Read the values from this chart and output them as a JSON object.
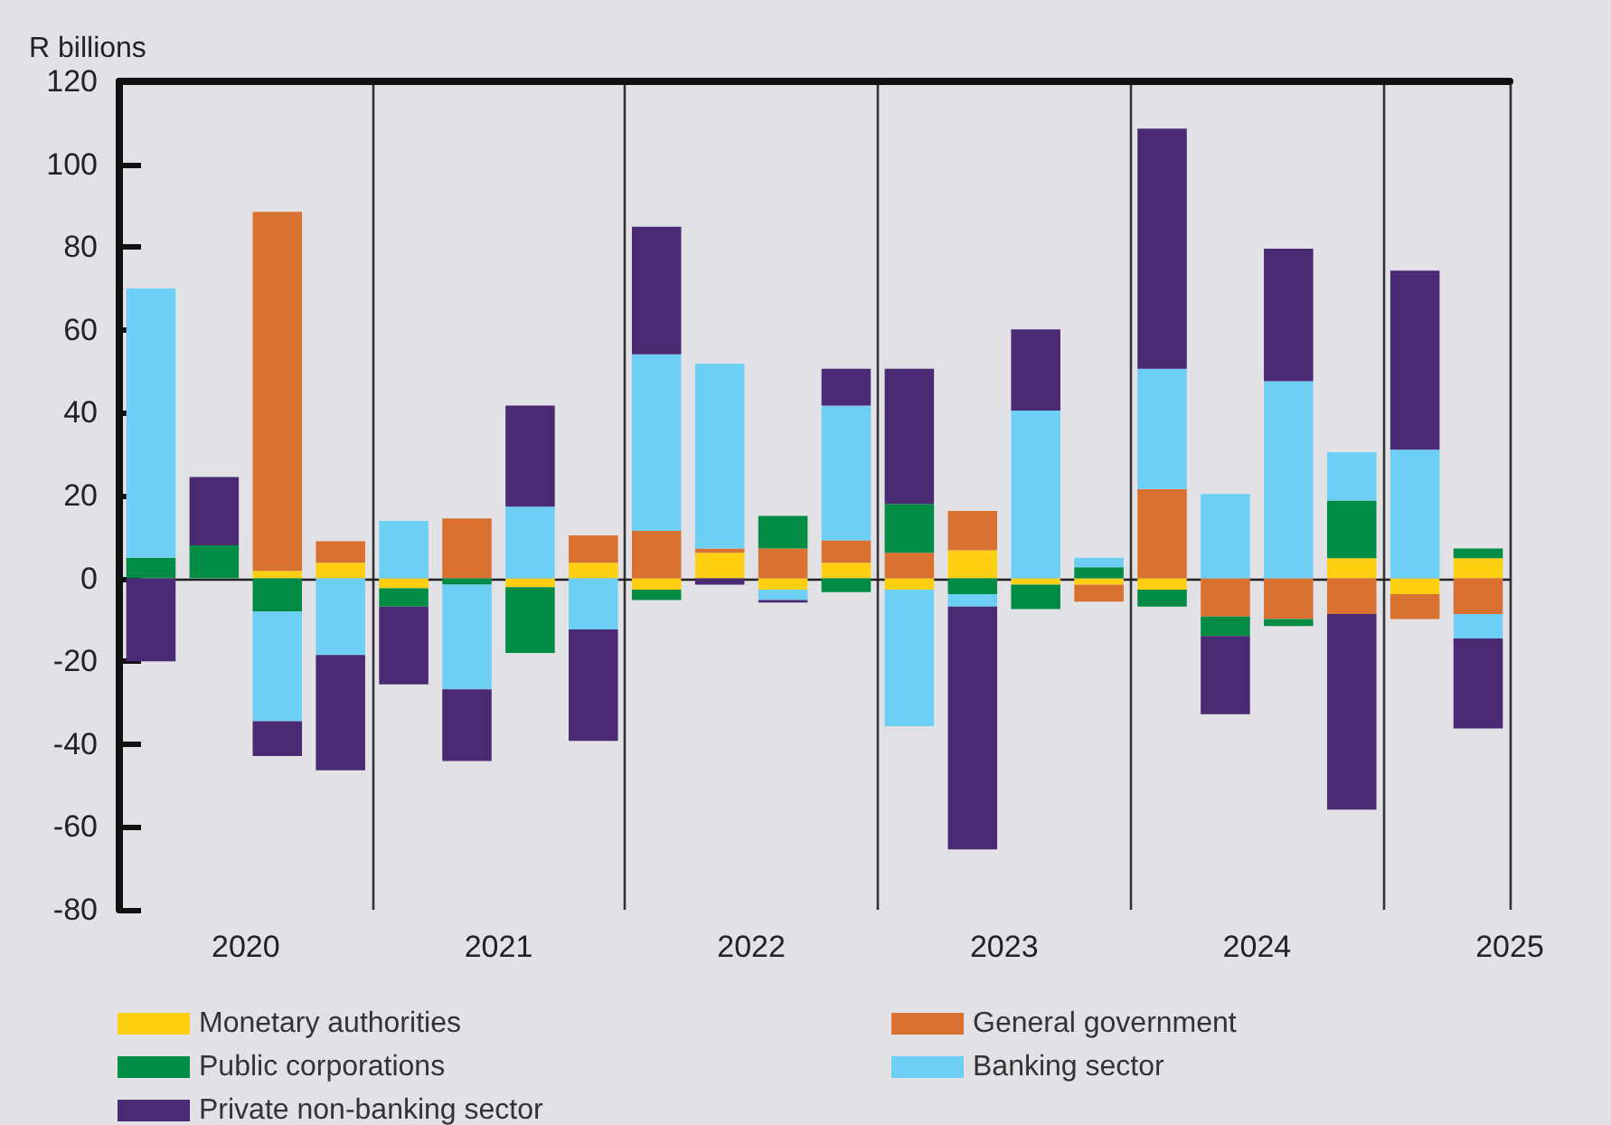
{
  "chart_data": {
    "type": "bar",
    "ylabel": "R billions",
    "stacked": true,
    "grid": "x",
    "legend": "bottom",
    "categories": [
      null,
      "2020",
      null,
      null,
      null,
      "2021",
      null,
      null,
      null,
      "2022",
      null,
      null,
      null,
      "2023",
      null,
      null,
      null,
      "2024",
      null,
      null,
      null,
      "2025"
    ],
    "ylim": [
      -80,
      120
    ],
    "yticks": [
      -80,
      -60,
      -40,
      -20,
      0,
      20,
      40,
      60,
      80,
      100,
      120
    ],
    "series": [
      {
        "name": "Monetary authorities",
        "color": "#ffd011",
        "values": [
          null,
          null,
          1.8,
          3.8,
          -2.4,
          null,
          -2.1,
          3.8,
          -2.7,
          6.2,
          -2.7,
          3.8,
          -2.7,
          6.8,
          -1.5,
          -1.5,
          -2.7,
          null,
          null,
          4.9,
          -3.8,
          4.9
        ]
      },
      {
        "name": "General government",
        "color": "#d97231",
        "values": [
          null,
          null,
          86.7,
          5.2,
          null,
          14.5,
          null,
          6.6,
          11.5,
          1.0,
          7.2,
          5.4,
          6.2,
          9.5,
          null,
          -4.1,
          21.6,
          -9.2,
          -9.8,
          -8.6,
          -6.0,
          -8.6
        ]
      },
      {
        "name": "Public corporations",
        "color": "#008c45",
        "values": [
          5,
          8,
          -8,
          null,
          -4.4,
          -1.5,
          -15.9,
          null,
          -2.5,
          null,
          7.9,
          -3.3,
          11.8,
          -3.8,
          -5.9,
          2.7,
          -4.1,
          -4.7,
          -1.7,
          13.9,
          null,
          2.3
        ]
      },
      {
        "name": "Banking sector",
        "color": "#6ecff5",
        "values": [
          65,
          null,
          -26.5,
          -18.5,
          13.9,
          -25.3,
          17.3,
          -12.3,
          42.6,
          44.6,
          -2.5,
          32.5,
          -33,
          -3,
          40.5,
          2.3,
          29,
          20.4,
          47.6,
          11.7,
          31.1,
          -5.9
        ]
      },
      {
        "name": "Private non-banking sector",
        "color": "#4a2a72",
        "values": [
          -20,
          16.5,
          -8.4,
          -27.8,
          -18.8,
          -17.3,
          24.4,
          -26.9,
          30.8,
          -1.5,
          -0.6,
          8.9,
          32.6,
          -58.6,
          19.6,
          null,
          58,
          -18.9,
          32,
          -47.2,
          43.2,
          -21.7
        ]
      }
    ]
  }
}
